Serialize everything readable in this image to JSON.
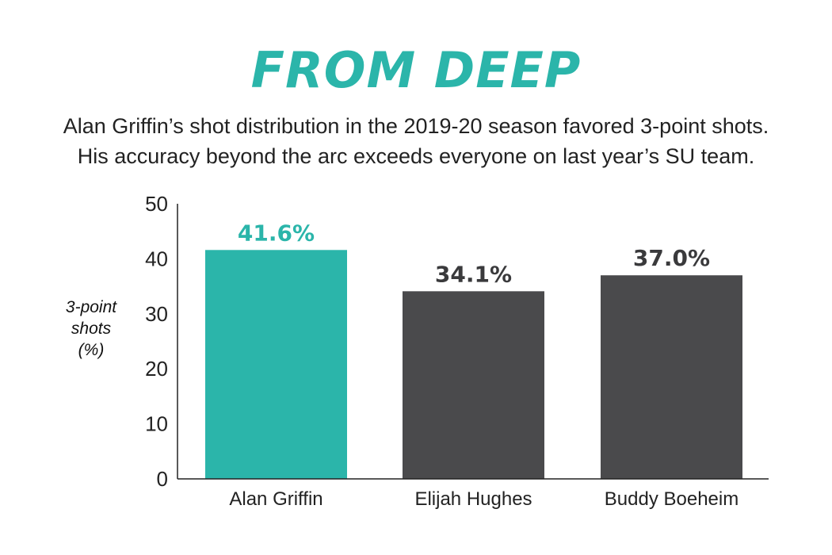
{
  "title": "FROM DEEP",
  "subtitle_lines": [
    "Alan Griffin’s shot distribution in the 2019-20 season favored 3-point shots.",
    "His accuracy beyond the arc exceeds everyone on last year’s SU team."
  ],
  "colors": {
    "title": "#2bb5aa",
    "highlight": "#2bb5aa",
    "default_bar": "#4a4a4c",
    "axis": "#222222",
    "default_label": "#3a3a3c"
  },
  "chart_data": {
    "type": "bar",
    "title": "FROM DEEP",
    "ylabel_lines": [
      "3-point",
      "shots",
      "(%)"
    ],
    "xlabel": "",
    "categories": [
      "Alan Griffin",
      "Elijah Hughes",
      "Buddy Boeheim"
    ],
    "values": [
      41.6,
      34.1,
      37.0
    ],
    "data_labels": [
      "41.6%",
      "34.1%",
      "37.0%"
    ],
    "highlight_index": 0,
    "ylim": [
      0,
      50
    ],
    "yticks": [
      0,
      10,
      20,
      30,
      40,
      50
    ],
    "grid": false,
    "legend": "none"
  }
}
